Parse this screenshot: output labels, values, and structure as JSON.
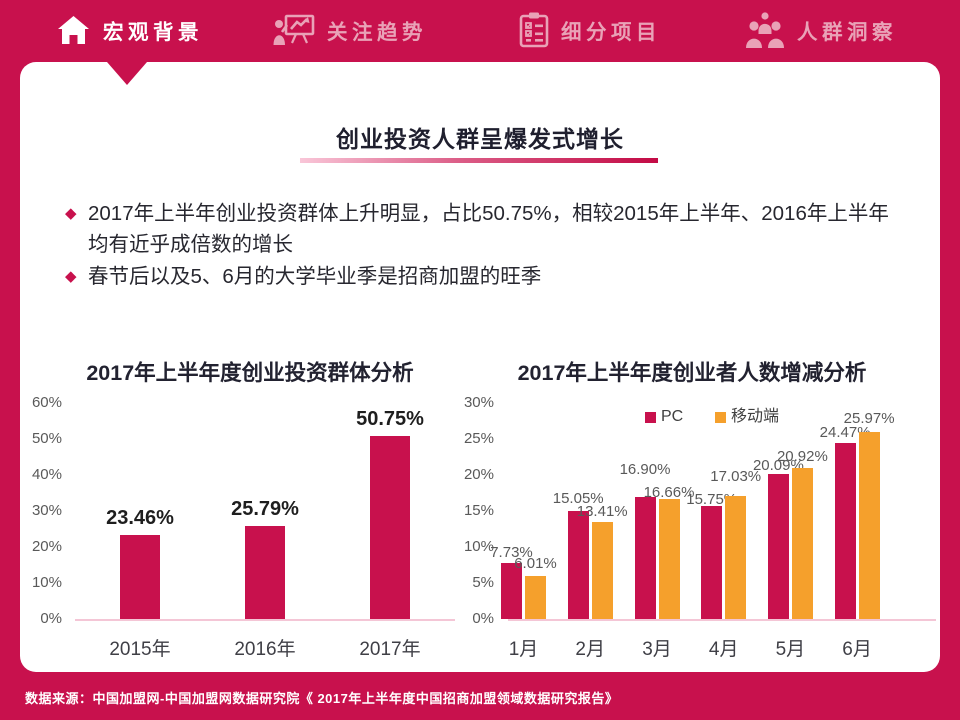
{
  "nav": {
    "items": [
      {
        "label": "宏观背景",
        "icon": "home-icon",
        "active": true
      },
      {
        "label": "关注趋势",
        "icon": "trend-presentation-icon",
        "active": false
      },
      {
        "label": "细分项目",
        "icon": "checklist-clipboard-icon",
        "active": false
      },
      {
        "label": "人群洞察",
        "icon": "people-group-icon",
        "active": false
      }
    ]
  },
  "slide": {
    "title": "创业投资人群呈爆发式增长",
    "bullets": [
      "2017年上半年创业投资群体上升明显，占比50.75%，相较2015年上半年、2016年上半年均有近乎成倍数的增长",
      "春节后以及5、6月的大学毕业季是招商加盟的旺季"
    ]
  },
  "footer": {
    "source": "数据来源：中国加盟网-中国加盟网数据研究院《 2017年上半年度中国招商加盟领域数据研究报告》"
  },
  "colors": {
    "crimson": "#C8114D",
    "orange": "#F5A02C",
    "inactive_pink": "#E9A2B7",
    "axis_pink": "#F4C6D6"
  },
  "chart_data": [
    {
      "type": "bar",
      "title": "2017年上半年度创业投资群体分析",
      "categories": [
        "2015年",
        "2016年",
        "2017年"
      ],
      "values": [
        23.46,
        25.79,
        50.75
      ],
      "value_labels": [
        "23.46%",
        "25.79%",
        "50.75%"
      ],
      "bar_color": "#C8114D",
      "ylim": [
        0,
        60
      ],
      "yticks": [
        "60%",
        "50%",
        "40%",
        "30%",
        "20%",
        "10%",
        "0%"
      ],
      "grid": false,
      "legend_position": "none"
    },
    {
      "type": "bar",
      "title": "2017年上半年度创业者人数增减分析",
      "categories": [
        "1月",
        "2月",
        "3月",
        "4月",
        "5月",
        "6月"
      ],
      "series": [
        {
          "name": "PC",
          "color": "#C8114D",
          "values": [
            7.73,
            15.05,
            16.9,
            15.75,
            20.09,
            24.47
          ],
          "value_labels": [
            "7.73%",
            "15.05%",
            "16.90%",
            "15.75%",
            "20.09%",
            "24.47%"
          ]
        },
        {
          "name": "移动端",
          "color": "#F5A02C",
          "values": [
            6.01,
            13.41,
            16.66,
            17.03,
            20.92,
            25.97
          ],
          "value_labels": [
            "6.01%",
            "13.41%",
            "16.66%",
            "17.03%",
            "20.92%",
            "25.97%"
          ]
        }
      ],
      "ylim": [
        0,
        30
      ],
      "yticks": [
        "30%",
        "25%",
        "20%",
        "15%",
        "10%",
        "5%",
        "0%"
      ],
      "grid": false,
      "legend_position": "top"
    }
  ]
}
